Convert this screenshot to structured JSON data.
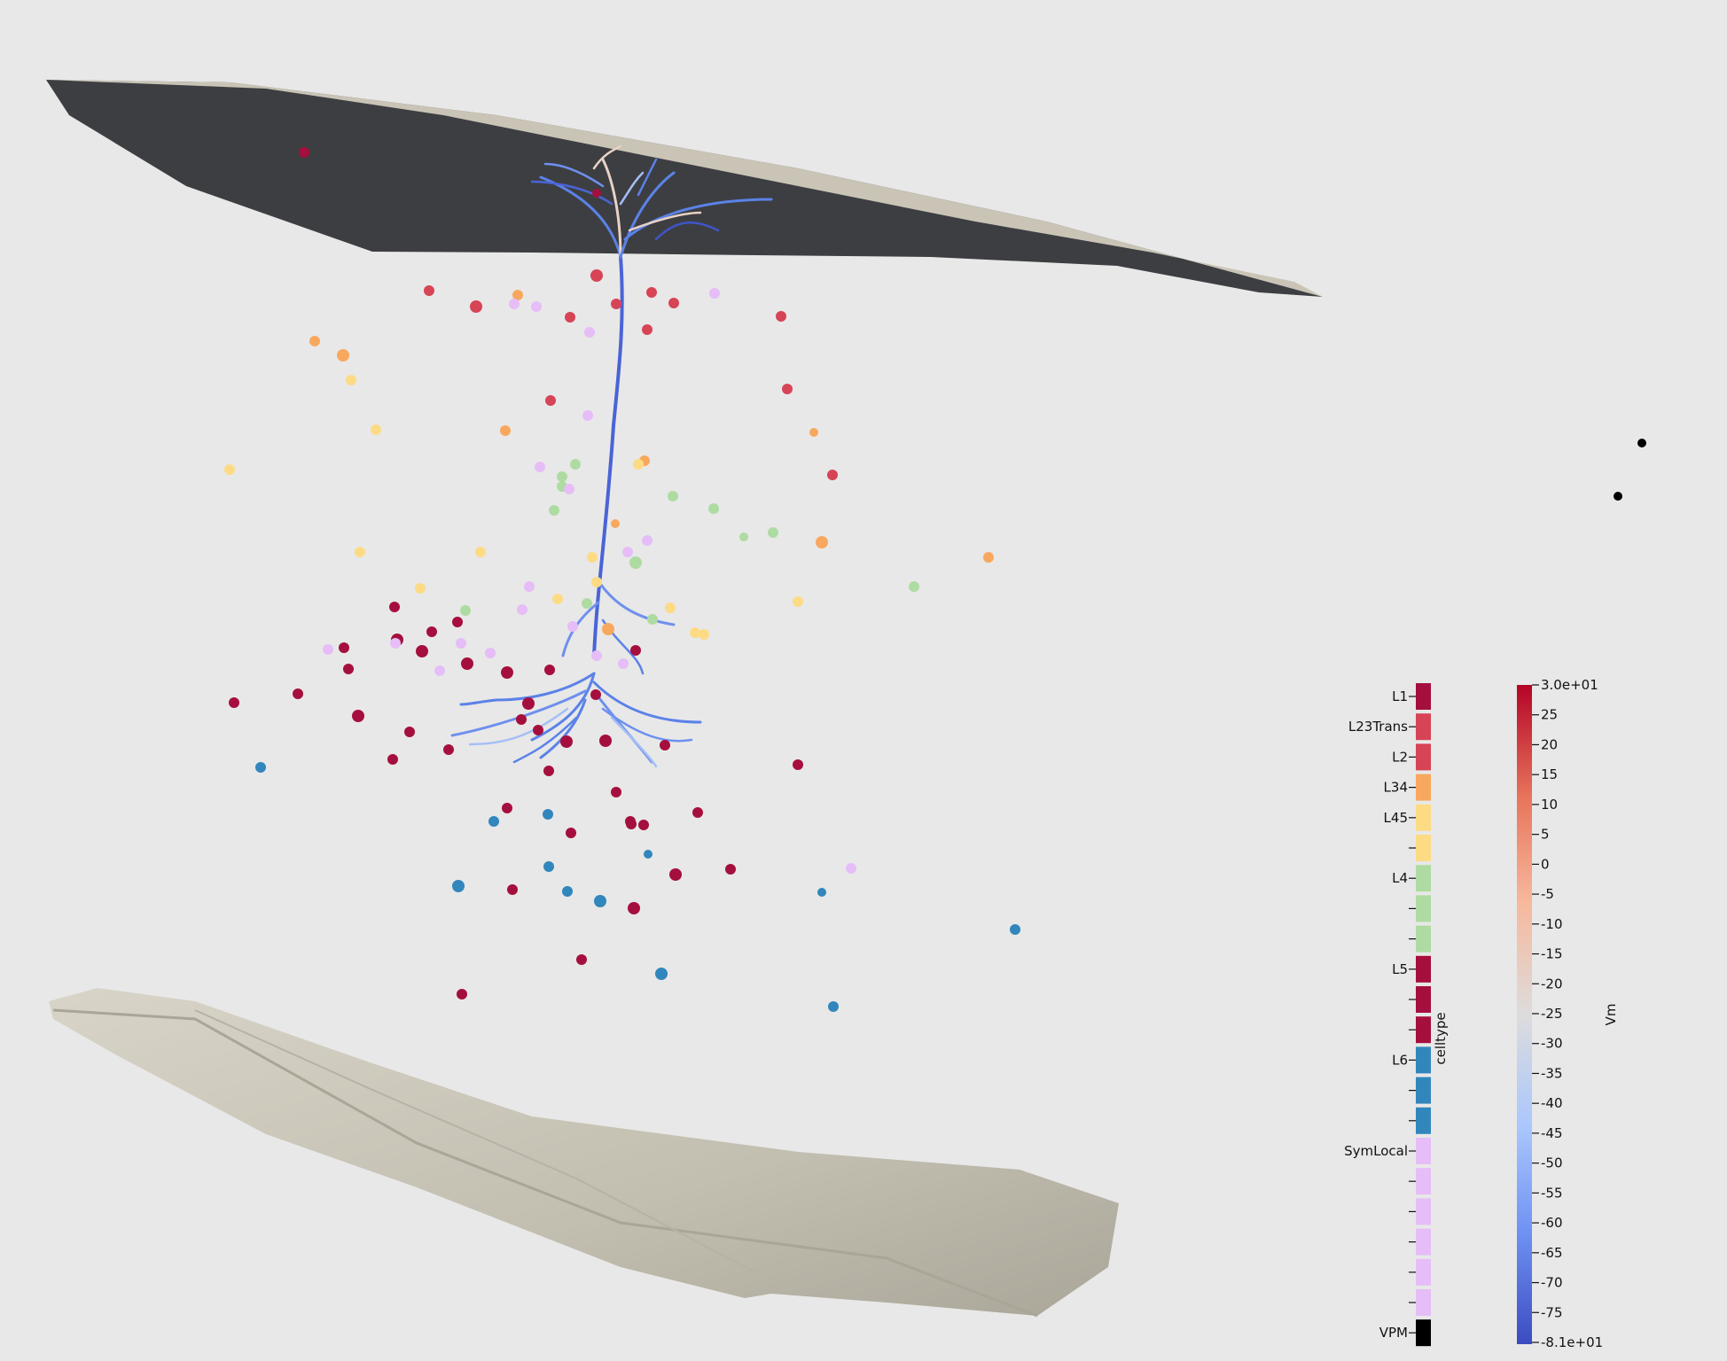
{
  "colors": {
    "background": "#e8e8e8",
    "pia_surface": "#3d3e42",
    "pia_edge": "#c9c4b6",
    "wm_surface": "#cfcbbf",
    "wm_shadow": "#a9a597",
    "dendrite": "#5b82e8"
  },
  "celltype_legend": {
    "title": "celltype",
    "entries": [
      {
        "label": "L1",
        "color": "#a50f3e"
      },
      {
        "label": "L23Trans",
        "color": "#d64456"
      },
      {
        "label": "L2",
        "color": "#d64456"
      },
      {
        "label": "L34",
        "color": "#f8a85e"
      },
      {
        "label": "L45",
        "color": "#fddb85"
      },
      {
        "label": "",
        "color": "#fddb85"
      },
      {
        "label": "L4",
        "color": "#aedba1"
      },
      {
        "label": "",
        "color": "#aedba1"
      },
      {
        "label": "",
        "color": "#aedba1"
      },
      {
        "label": "L5",
        "color": "#a50f3e"
      },
      {
        "label": "",
        "color": "#a50f3e"
      },
      {
        "label": "",
        "color": "#a50f3e"
      },
      {
        "label": "L6",
        "color": "#3186bc"
      },
      {
        "label": "",
        "color": "#3186bc"
      },
      {
        "label": "",
        "color": "#3186bc"
      },
      {
        "label": "SymLocal",
        "color": "#e6bdf7"
      },
      {
        "label": "",
        "color": "#e6bdf7"
      },
      {
        "label": "",
        "color": "#e6bdf7"
      },
      {
        "label": "",
        "color": "#e6bdf7"
      },
      {
        "label": "",
        "color": "#e6bdf7"
      },
      {
        "label": "",
        "color": "#e6bdf7"
      },
      {
        "label": "VPM",
        "color": "#000000"
      }
    ]
  },
  "vm_colorbar": {
    "title": "Vm",
    "ticks": [
      "3.0e+01",
      "25",
      "20",
      "15",
      "10",
      "5",
      "0",
      "-5",
      "-10",
      "-15",
      "-20",
      "-25",
      "-30",
      "-35",
      "-40",
      "-45",
      "-50",
      "-55",
      "-60",
      "-65",
      "-70",
      "-75",
      "-8.1e+01"
    ],
    "colormap": [
      "#3b4cc0",
      "#6f92f3",
      "#aac7fd",
      "#dddcdc",
      "#f7b89c",
      "#e7745b",
      "#b40426"
    ]
  }
}
